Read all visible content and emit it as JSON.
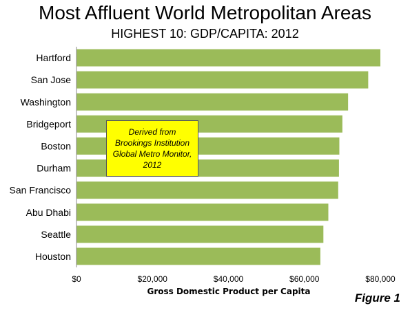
{
  "chart_data": {
    "type": "bar",
    "orientation": "horizontal",
    "title": "Most Affluent World Metropolitan Areas",
    "subtitle": "HIGHEST 10: GDP/CAPITA: 2012",
    "xlabel": "Gross Domestic Product per Capita",
    "xlim": [
      0,
      80000
    ],
    "x_ticks": [
      0,
      20000,
      40000,
      60000,
      80000
    ],
    "x_tick_labels": [
      "$0",
      "$20,000",
      "$40,000",
      "$60,000",
      "$80,000"
    ],
    "categories": [
      "Hartford",
      "San Jose",
      "Washington",
      "Bridgeport",
      "Boston",
      "Durham",
      "San Francisco",
      "Abu Dhabi",
      "Seattle",
      "Houston"
    ],
    "values": [
      80000,
      76800,
      71500,
      70000,
      69200,
      69100,
      68900,
      66300,
      65000,
      64200
    ],
    "bar_color": "#9bbb59",
    "grid": false,
    "legend": "none",
    "annotation": [
      "Derived from",
      "Brookings Institution",
      "Global Metro Monitor,",
      "2012"
    ],
    "figure_label": "Figure 1"
  }
}
